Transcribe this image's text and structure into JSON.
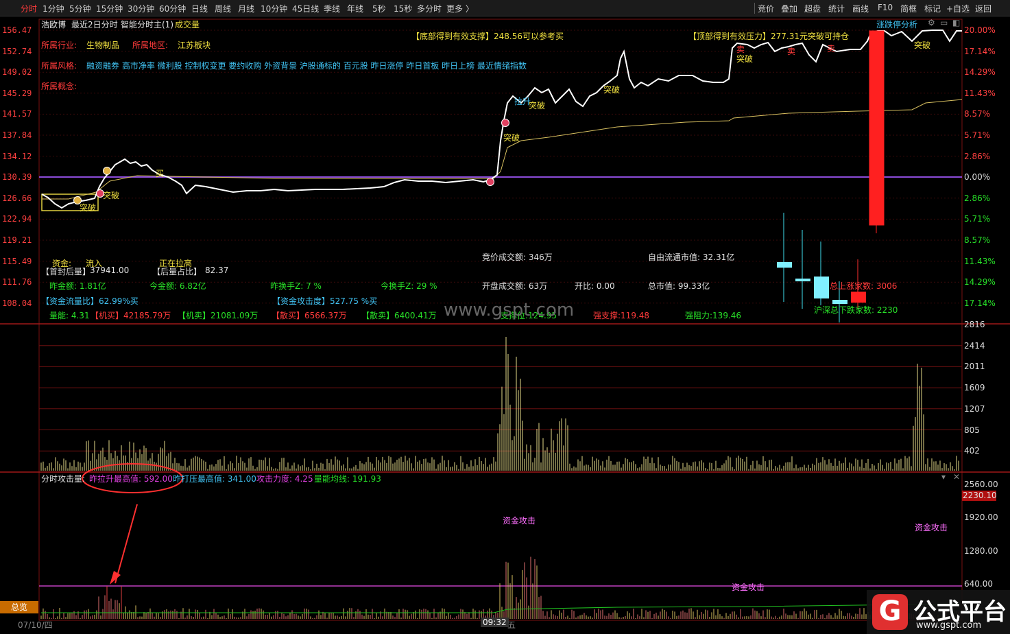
{
  "toolbar": {
    "left_items": [
      "分时",
      "1分钟",
      "5分钟",
      "15分钟",
      "30分钟",
      "60分钟",
      "日线",
      "周线",
      "月线",
      "10分钟",
      "45日线",
      "季线",
      "年线",
      "5秒",
      "15秒",
      "多分时",
      "更多 〉"
    ],
    "right_items": [
      "竞价",
      "叠加",
      "超盘",
      "统计",
      "画线",
      "F10",
      "简框",
      "标记",
      "+自选",
      "返回"
    ]
  },
  "header": {
    "stock_name": "浩欧博",
    "mode": "最近2日分时",
    "indicator": "智能分时主(1)",
    "volume_label": "成交量",
    "right_tab": "涨跌停分析"
  },
  "info": {
    "industry_label": "所属行业:",
    "industry": "生物制品",
    "region_label": "所属地区:",
    "region": "江苏板块",
    "style_label": "所属风格:",
    "styles": "融资融券  高市净率  微利股  控制权变更  要约收购  外资背景  沪股通标的  百元股  昨日涨停  昨日首板  昨日上榜  最近情绪指数",
    "concept_label": "所属概念:"
  },
  "annotations": {
    "bottom_support": "【底部得到有效支撑】248.56可以参考买",
    "top_pressure": "【顶部得到有效压力】277.31元突破可持仓",
    "breakthrough": "突破",
    "buy": "买",
    "sell": "卖",
    "pull": "拉升"
  },
  "left_axis": [
    "156.47",
    "152.74",
    "149.02",
    "145.29",
    "141.57",
    "137.84",
    "134.12",
    "130.39",
    "126.66",
    "122.94",
    "119.21",
    "115.49",
    "111.76",
    "108.04"
  ],
  "right_axis": [
    "20.00%",
    "17.14%",
    "14.29%",
    "11.43%",
    "8.57%",
    "5.71%",
    "2.86%",
    "0.00%",
    "2.86%",
    "5.71%",
    "8.57%",
    "11.43%",
    "14.29%",
    "17.14%"
  ],
  "stats": {
    "funds_label": "资金:",
    "funds_value": "流入",
    "pulling": "正在拉高",
    "first_seal_label": "【首封后量】",
    "first_seal_value": "37941.00",
    "later_ratio_label": "【后量占比】",
    "later_ratio_value": "82.37",
    "yesterday_amount": "昨金额: 1.81亿",
    "today_amount": "今金额: 6.82亿",
    "yesterday_turnover": "昨换手Z:  7  %",
    "today_turnover": "今换手Z:  29  %",
    "flow_ratio": "【资金流量比】62.99%买",
    "attack": "【资金攻击度】527.75 %买",
    "energy": "量能: 4.31",
    "inst_buy_label": "【机买】",
    "inst_buy": "42185.79万",
    "inst_sell_label": "【机卖】",
    "inst_sell": "21081.09万",
    "retail_buy_label": "【散买】",
    "retail_buy": "6566.37万",
    "retail_sell_label": "【散卖】",
    "retail_sell": "6400.41万",
    "auction_amount": "竞价成交额: 346万",
    "open_amount": "开盘成交额: 63万",
    "open_ratio": "开比: 0.00",
    "float_cap": "自由流通市值: 32.31亿",
    "total_cap": "总市值: 99.33亿",
    "support": "支撑位:124.95",
    "strong_support": "强支撑:119.48",
    "strong_resist": "强阻力:139.46",
    "up_count": "总上涨家数:  3006",
    "down_count": "沪深总下跌家数:  2230"
  },
  "watermark": "www.gspt.com",
  "volume_axis": [
    "2816",
    "2414",
    "2011",
    "1609",
    "1207",
    "805",
    "402"
  ],
  "attack_panel": {
    "title": "分时攻击量:",
    "yesterday_high": "昨拉升最高值: 592.00",
    "yesterday_press": "昨打压最高值: 341.00",
    "force": "攻击力度: 4.25",
    "avg": "量能均线: 191.93",
    "axis": [
      "2560.00",
      "2230.10",
      "1920.00",
      "1280.00",
      "640.00"
    ],
    "tag": "资金攻击"
  },
  "footer": {
    "button": "总览",
    "date": "07/10/四",
    "time": "09:32",
    "time_suffix": "五"
  },
  "logo": {
    "g": "G",
    "title": "公式平台",
    "url": "www.gspt.com"
  }
}
